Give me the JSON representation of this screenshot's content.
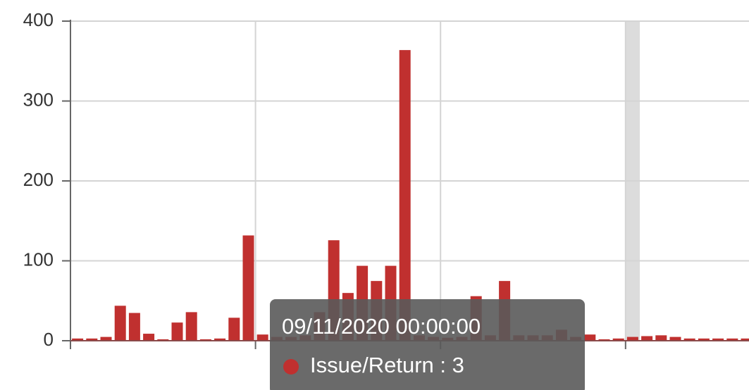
{
  "chart_data": {
    "type": "bar",
    "categories": [
      null,
      null,
      null,
      null,
      null,
      null,
      null,
      null,
      null,
      null,
      null,
      null,
      null,
      null,
      null,
      null,
      null,
      null,
      null,
      null,
      null,
      null,
      null,
      null,
      null,
      null,
      null,
      null,
      null,
      null,
      null,
      null,
      null,
      null,
      null,
      null,
      null,
      null,
      null,
      null,
      null,
      null,
      null,
      null,
      null,
      null,
      null,
      null
    ],
    "values": [
      1,
      1,
      3,
      42,
      33,
      7,
      0,
      21,
      34,
      0,
      1,
      27,
      130,
      6,
      3,
      3,
      5,
      34,
      124,
      58,
      92,
      73,
      92,
      362,
      5,
      3,
      2,
      3,
      54,
      5,
      73,
      5,
      5,
      5,
      12,
      3,
      6,
      0,
      1,
      3,
      4,
      5,
      3,
      1,
      1,
      1,
      1,
      1
    ],
    "color": "#c0302f",
    "ylim": [
      0,
      400
    ],
    "yticks": [
      0,
      100,
      200,
      300,
      400
    ],
    "grid": true,
    "tooltip": {
      "title": "09/11/2020 00:00:00",
      "label": "Issue/Return : 3",
      "index": 39
    }
  }
}
